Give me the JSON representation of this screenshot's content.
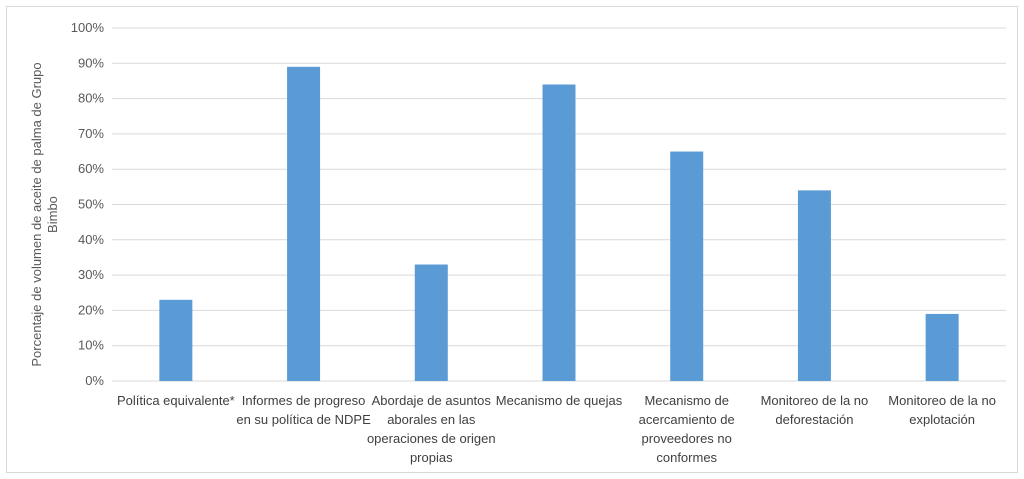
{
  "chart_data": {
    "type": "bar",
    "ylabel": "Porcentaje de volumen de aceite de palma de Grupo Bimbo",
    "ylabel_lines": [
      "Porcentaje de volumen de aceite de palma de Grupo",
      "Bimbo"
    ],
    "categories": [
      "Política equivalente*",
      "Informes de progreso en su política de NDPE",
      "Abordaje de asuntos aborales en las operaciones de origen propias",
      "Mecanismo de quejas",
      "Mecanismo de acercamiento de proveedores no conformes",
      "Monitoreo de la no deforestación",
      "Monitoreo de la no explotación"
    ],
    "category_lines": [
      [
        "Política equivalente*"
      ],
      [
        "Informes de progreso",
        "en su política de NDPE"
      ],
      [
        "Abordaje de asuntos",
        "aborales en las",
        "operaciones de origen",
        "propias"
      ],
      [
        "Mecanismo de quejas"
      ],
      [
        "Mecanismo de",
        "acercamiento de",
        "proveedores no",
        "conformes"
      ],
      [
        "Monitoreo de la no",
        "deforestación"
      ],
      [
        "Monitoreo de la no",
        "explotación"
      ]
    ],
    "values": [
      23,
      89,
      33,
      84,
      65,
      54,
      19
    ],
    "ylim": [
      0,
      100
    ],
    "yticks": [
      "0%",
      "10%",
      "20%",
      "30%",
      "40%",
      "50%",
      "60%",
      "70%",
      "80%",
      "90%",
      "100%"
    ],
    "grid": true,
    "bar_color": "#5b9bd5",
    "grid_color": "#d9d9d9"
  }
}
